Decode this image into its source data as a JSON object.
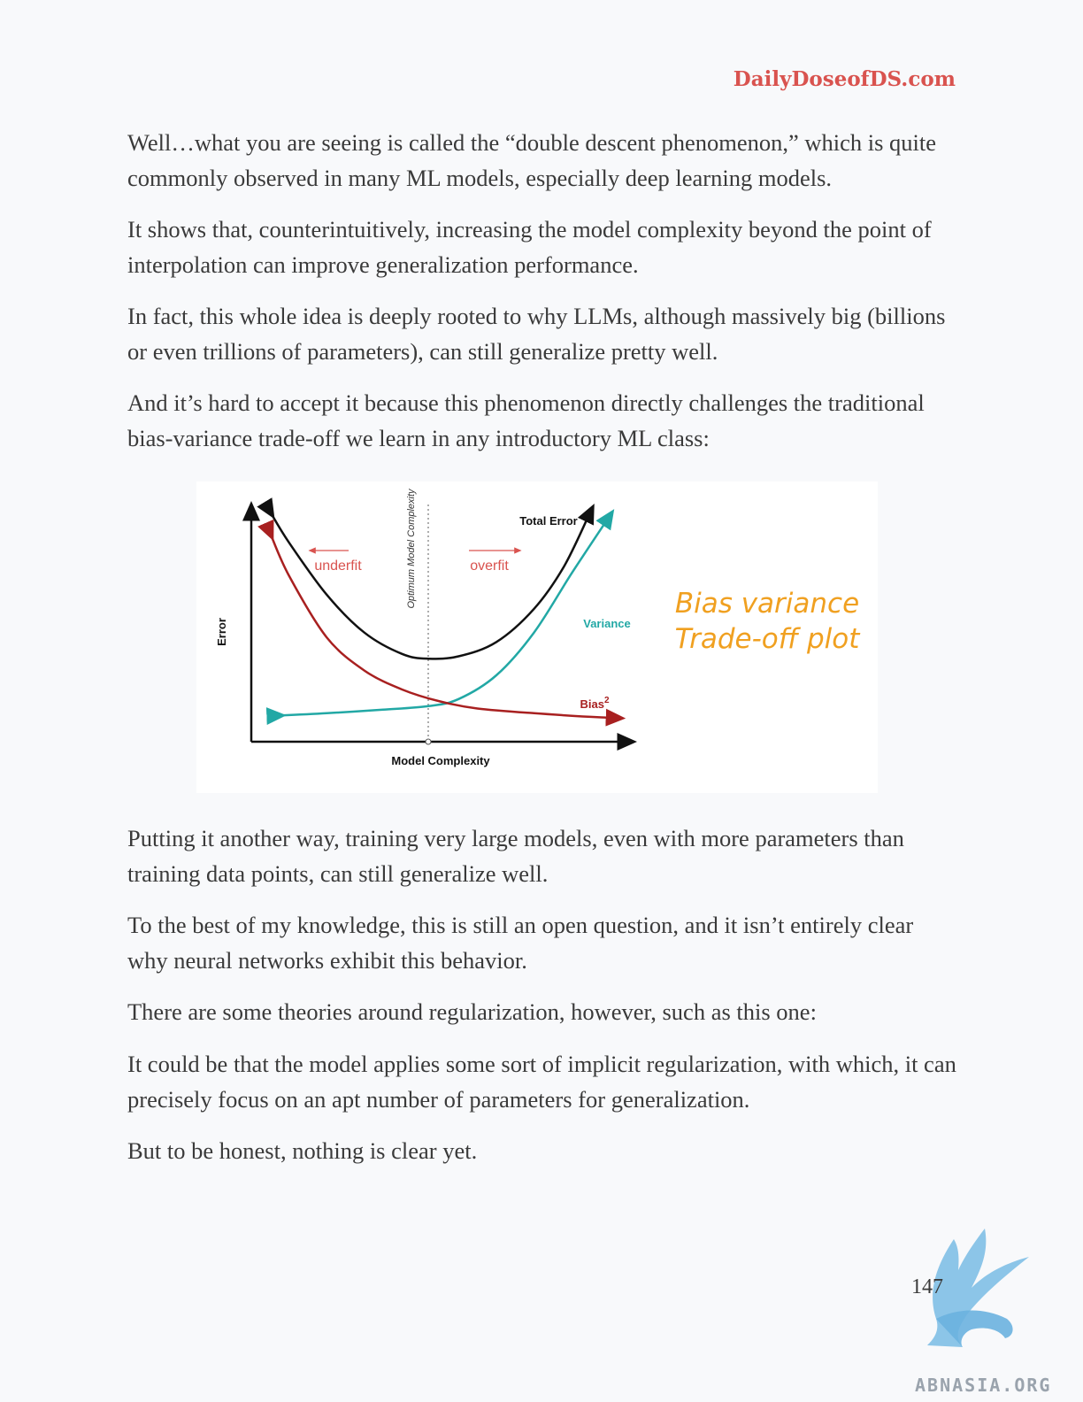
{
  "header": {
    "site": "DailyDoseofDS.com"
  },
  "paragraphs": {
    "p1": "Well…what you are seeing is called the “double descent phenomenon,” which is quite commonly observed in many ML models, especially deep learning models.",
    "p2": "It shows that, counterintuitively, increasing the model complexity beyond the point of interpolation can improve generalization performance.",
    "p3": "In fact, this whole idea is deeply rooted to why LLMs, although massively big (billions or even trillions of parameters), can still generalize pretty well.",
    "p4": "And it’s hard to accept it because this phenomenon directly challenges the traditional bias-variance trade-off we learn in any introductory ML class:",
    "p5": "Putting it another way, training very large models, even with more parameters than training data points, can still generalize well.",
    "p6": "To the best of my knowledge, this is still an open question, and it isn’t entirely clear why neural networks exhibit this behavior.",
    "p7": "There are some theories around regularization, however, such as this one:",
    "p8": "It could be that the model applies some sort of implicit regularization, with which, it can precisely focus on an apt number of parameters for generalization.",
    "p9": "But to be honest, nothing is clear yet."
  },
  "figure": {
    "annotation_line1": "Bias variance",
    "annotation_line2": "Trade-off plot"
  },
  "chart_data": {
    "type": "line",
    "title": "",
    "xlabel": "Model Complexity",
    "ylabel": "Error",
    "vline_label": "Optimum Model Complexity",
    "region_left": "underfit",
    "region_right": "overfit",
    "x_range": [
      0,
      1
    ],
    "y_range": [
      0,
      1
    ],
    "series": [
      {
        "name": "Total Error",
        "color": "#111111",
        "x": [
          0.05,
          0.1,
          0.2,
          0.3,
          0.4,
          0.47,
          0.55,
          0.65,
          0.75,
          0.83,
          0.9
        ],
        "y": [
          0.97,
          0.84,
          0.62,
          0.46,
          0.37,
          0.35,
          0.36,
          0.42,
          0.56,
          0.74,
          0.97
        ]
      },
      {
        "name": "Variance",
        "color": "#22a8a5",
        "x": [
          0.07,
          0.2,
          0.35,
          0.47,
          0.55,
          0.65,
          0.75,
          0.85,
          0.95
        ],
        "y": [
          0.11,
          0.12,
          0.135,
          0.15,
          0.18,
          0.28,
          0.46,
          0.71,
          0.95
        ]
      },
      {
        "name": "Bias",
        "color": "#a82020",
        "x": [
          0.05,
          0.1,
          0.2,
          0.3,
          0.4,
          0.5,
          0.6,
          0.75,
          0.9,
          0.97
        ],
        "y": [
          0.88,
          0.7,
          0.44,
          0.3,
          0.22,
          0.17,
          0.14,
          0.12,
          0.105,
          0.1
        ]
      }
    ],
    "bias_label": "Bias",
    "bias_superscript": "2"
  },
  "footer": {
    "page_number": "147",
    "watermark": "ABNASIA.ORG"
  },
  "colors": {
    "brand": "#d9534f",
    "annotation": "#f0a020",
    "text": "#3a3a3a"
  }
}
